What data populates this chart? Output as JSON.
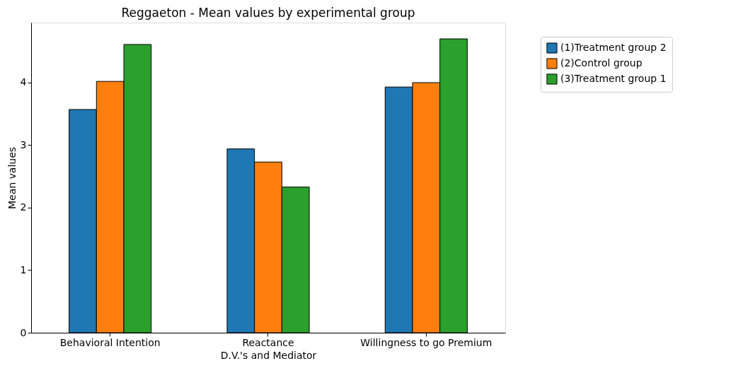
{
  "chart_data": {
    "type": "bar",
    "title": "Reggaeton - Mean values by experimental group",
    "xlabel": "D.V.'s and Mediator",
    "ylabel": "Mean values",
    "categories": [
      "Behavioral Intention",
      "Reactance",
      "Willingness to go Premium"
    ],
    "series": [
      {
        "name": "(1)Treatment group 2",
        "color": "#1f77b4",
        "values": [
          3.57,
          2.94,
          3.93
        ]
      },
      {
        "name": "(2)Control group",
        "color": "#ff7f0e",
        "values": [
          4.02,
          2.73,
          4.0
        ]
      },
      {
        "name": "(3)Treatment group 1",
        "color": "#2ca02c",
        "values": [
          4.61,
          2.33,
          4.7
        ]
      }
    ],
    "ylim": [
      0,
      4.96
    ],
    "yticks": [
      0,
      1,
      2,
      3,
      4
    ],
    "grid": false,
    "legend": "top right"
  }
}
